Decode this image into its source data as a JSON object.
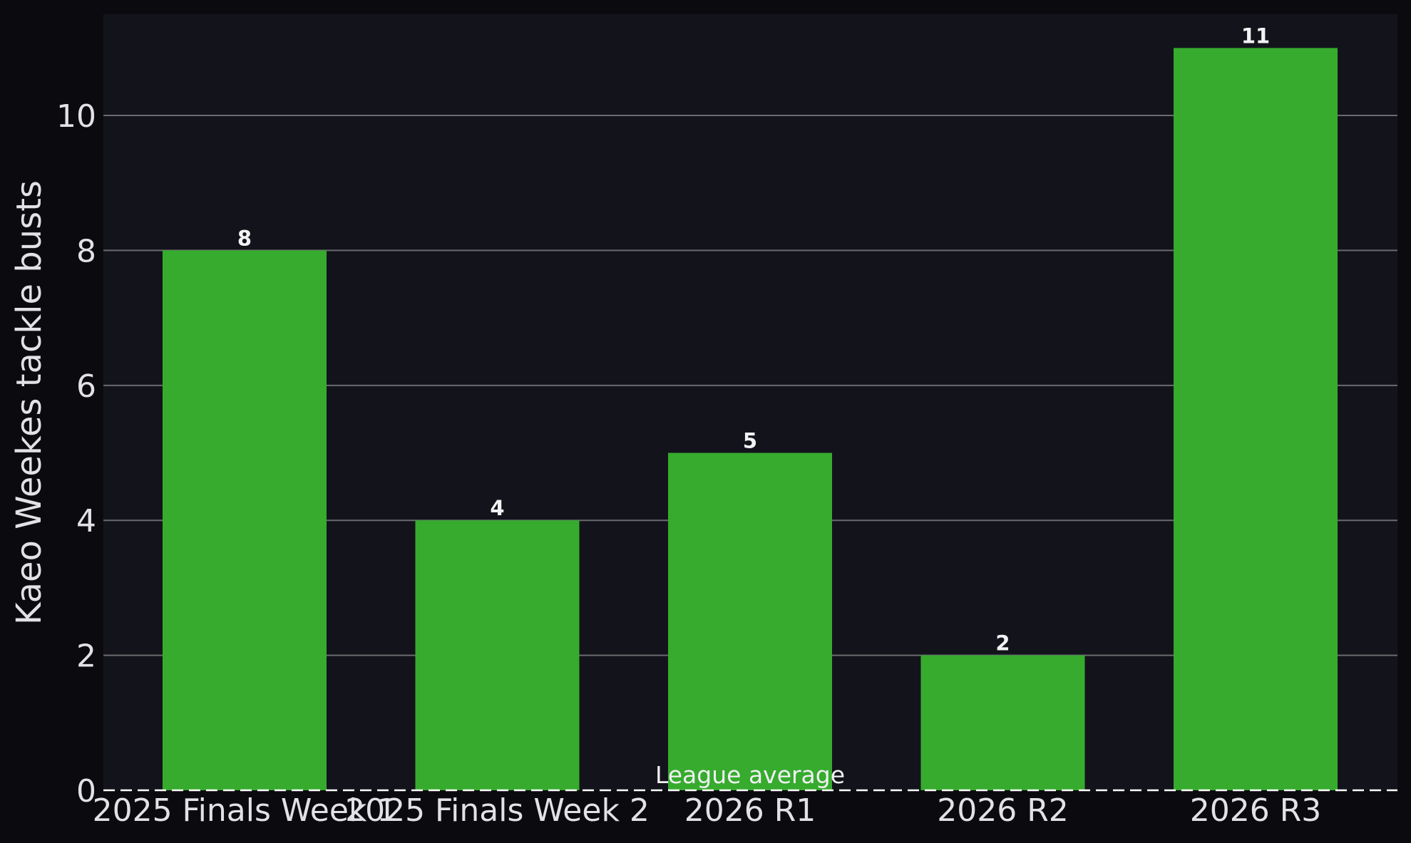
{
  "chart_data": {
    "type": "bar",
    "categories": [
      "2025 Finals Week 1",
      "2025 Finals Week 2",
      "2026 R1",
      "2026 R2",
      "2026 R3"
    ],
    "values": [
      8,
      4,
      5,
      2,
      11
    ],
    "data_labels": [
      "8",
      "4",
      "5",
      "2",
      "11"
    ],
    "title": "",
    "xlabel": "",
    "ylabel": "Kaeo Weekes tackle busts",
    "ylim": [
      0,
      11.5
    ],
    "yticks": [
      0,
      2,
      4,
      6,
      8,
      10
    ],
    "ytick_labels": [
      "0",
      "2",
      "4",
      "6",
      "8",
      "10"
    ],
    "grid": "horizontal",
    "reference_line": {
      "label": "League average",
      "value": 0,
      "style": "dashed"
    },
    "colors": {
      "bar": "#36ab2e",
      "plot_background": "#13141b",
      "figure_background": "#0b0b0f",
      "grid": "#6a6a6f",
      "text": "#e2e2e6",
      "reference_line": "#ffffff"
    }
  }
}
